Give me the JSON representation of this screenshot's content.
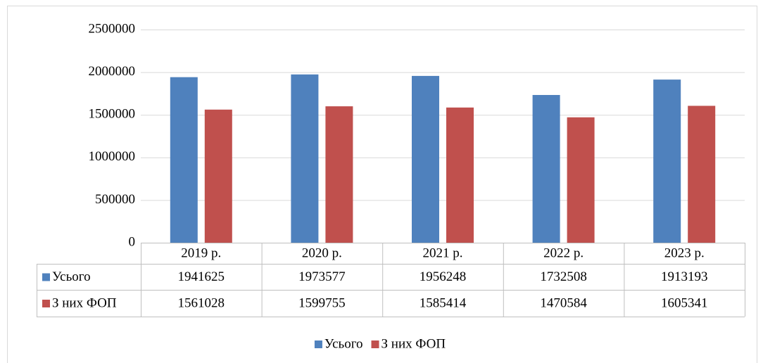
{
  "chart_data": {
    "type": "bar",
    "categories": [
      "2019 р.",
      "2020 р.",
      "2021 р.",
      "2022 р.",
      "2023 р."
    ],
    "series": [
      {
        "name": "Усього",
        "color": "#4f81bd",
        "values": [
          1941625,
          1973577,
          1956248,
          1732508,
          1913193
        ]
      },
      {
        "name": "З них ФОП",
        "color": "#c0504d",
        "values": [
          1561028,
          1599755,
          1585414,
          1470584,
          1605341
        ]
      }
    ],
    "ylim": [
      0,
      2500000
    ],
    "yticks": [
      0,
      500000,
      1000000,
      1500000,
      2000000,
      2500000
    ],
    "grid": true,
    "legend": "bottom",
    "data_table": true
  }
}
